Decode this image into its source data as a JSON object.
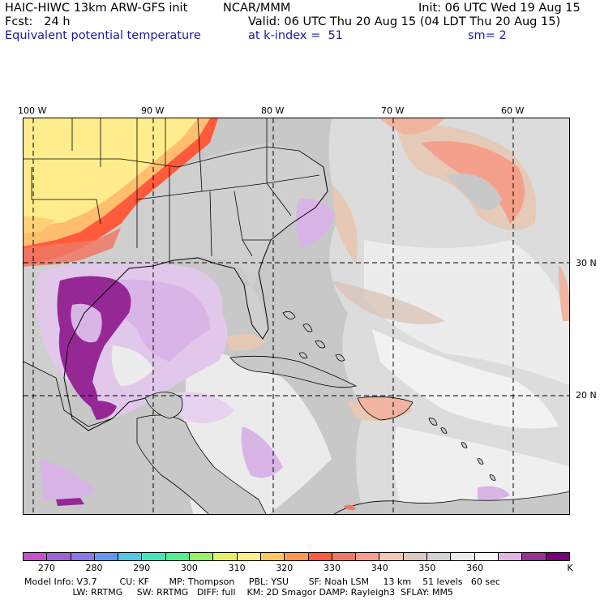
{
  "header": {
    "model": "HAIC-HIWC 13km ARW-GFS init",
    "agency": "NCAR/MMM",
    "init": "Init: 06 UTC Wed 19 Aug 15",
    "fcst": "Fcst:   24 h",
    "valid": "Valid: 06 UTC Thu 20 Aug 15 (04 LDT Thu 20 Aug 15)",
    "field": "Equivalent potential temperature",
    "level": "at k-index =  51",
    "smoothing": "sm= 2"
  },
  "map": {
    "longitude_labels": [
      "100 W",
      "90 W",
      "80 W",
      "70 W",
      "60 W"
    ],
    "latitude_labels": [
      "30 N",
      "20 N"
    ],
    "colors": {
      "ocean_gray": "#c8c8c8",
      "ocean_light": "#ececec",
      "land_gray": "#cfcfcf",
      "warm_yellow": "#ffec8c",
      "warm_orange": "#ffbe6e",
      "warm_red": "#ff5a3c",
      "purple_dark": "#962896",
      "purple_light": "#d9b4e6",
      "salmon": "#f5a08c",
      "tan": "#e6c8b4"
    }
  },
  "colorbar": {
    "colors": [
      "#c850c8",
      "#a064d2",
      "#8c78e6",
      "#6496f0",
      "#50c8e6",
      "#46e6b4",
      "#50f08c",
      "#96f064",
      "#e6f064",
      "#fff08c",
      "#ffc864",
      "#ff9650",
      "#ff5a3c",
      "#f07864",
      "#f5a08c",
      "#f0c8b4",
      "#dcc8be",
      "#d2d2d2",
      "#ececec",
      "#fafafa",
      "#e1b4e6",
      "#963296",
      "#780078"
    ],
    "labels": [
      "270",
      "280",
      "290",
      "300",
      "310",
      "320",
      "330",
      "340",
      "350",
      "360"
    ],
    "unit": "K"
  },
  "footer": {
    "line1": "Model Info: V3.7        CU: KF       MP: Thompson     PBL: YSU       SF: Noah LSM     13 km    51 levels   60 sec",
    "line2": "                 LW: RRTMG     SW: RRTMG   DIFF: full    KM: 2D Smagor DAMP: Rayleigh3  SFLAY: MM5"
  }
}
